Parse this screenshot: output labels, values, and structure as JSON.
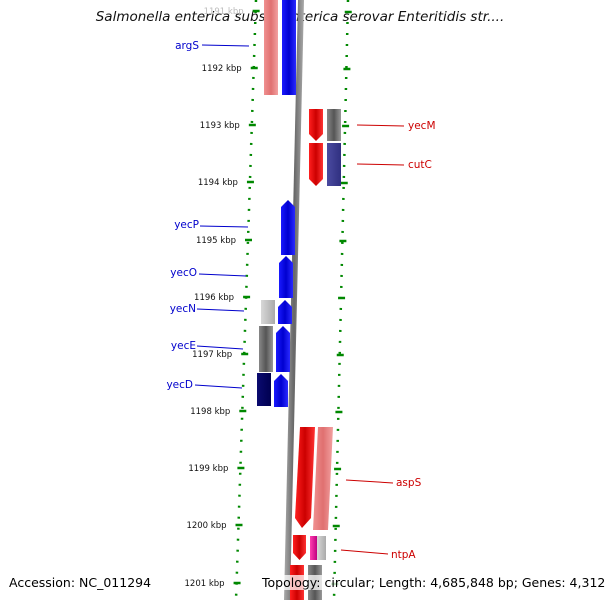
{
  "title": "Salmonella enterica subsp. enterica serovar Enteritidis str....",
  "footer": {
    "accession": "Accession: NC_011294",
    "summary": "Topology: circular; Length: 4,685,848 bp; Genes: 4,312"
  },
  "ruler": {
    "ticks": [
      {
        "label": "1191 kbp",
        "kbp": 1191
      },
      {
        "label": "1192 kbp",
        "kbp": 1192
      },
      {
        "label": "1193 kbp",
        "kbp": 1193
      },
      {
        "label": "1194 kbp",
        "kbp": 1194
      },
      {
        "label": "1195 kbp",
        "kbp": 1195
      },
      {
        "label": "1196 kbp",
        "kbp": 1196
      },
      {
        "label": "1197 kbp",
        "kbp": 1197
      },
      {
        "label": "1198 kbp",
        "kbp": 1198
      },
      {
        "label": "1199 kbp",
        "kbp": 1199
      },
      {
        "label": "1200 kbp",
        "kbp": 1200
      },
      {
        "label": "1201 kbp",
        "kbp": 1201
      }
    ]
  },
  "genes": [
    {
      "label": "argS",
      "strand": "reverse",
      "color": "#0000cc",
      "interactable": true
    },
    {
      "label": "yecP",
      "strand": "reverse",
      "color": "#0000cc",
      "interactable": true
    },
    {
      "label": "yecO",
      "strand": "reverse",
      "color": "#0000cc",
      "interactable": true
    },
    {
      "label": "yecN",
      "strand": "reverse",
      "color": "#0000cc",
      "interactable": true
    },
    {
      "label": "yecE",
      "strand": "reverse",
      "color": "#0000cc",
      "interactable": true
    },
    {
      "label": "yecD",
      "strand": "reverse",
      "color": "#0000cc",
      "interactable": true
    },
    {
      "label": "yecM",
      "strand": "forward",
      "color": "#cc0000",
      "interactable": true
    },
    {
      "label": "cutC",
      "strand": "forward",
      "color": "#cc0000",
      "interactable": true
    },
    {
      "label": "aspS",
      "strand": "forward",
      "color": "#cc0000",
      "interactable": true
    },
    {
      "label": "ntpA",
      "strand": "forward",
      "color": "#cc0000",
      "interactable": true
    }
  ],
  "colors": {
    "forward_cds": "#ff0000",
    "reverse_cds": "#0000ff",
    "forward_label": "#cc0000",
    "reverse_label": "#0000cc",
    "backbone": "#888888",
    "dotted_guides": "#008800"
  }
}
